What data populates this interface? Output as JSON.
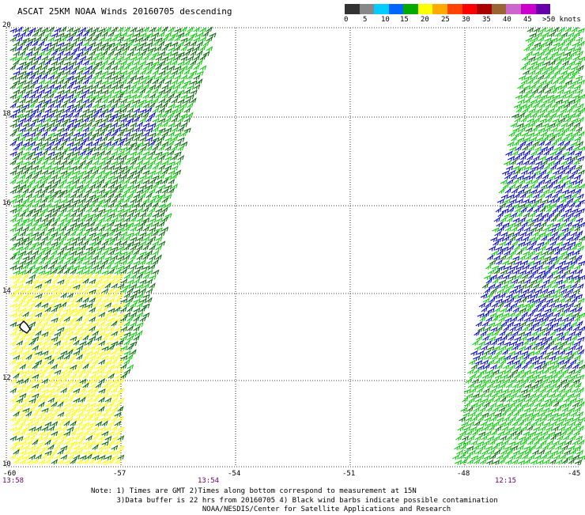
{
  "title": "ASCAT 25KM NOAA Winds 20160705 descending",
  "colors": {
    "accent_blue": "#0000cc",
    "accent_green": "#00cc00",
    "accent_dark_green": "#006600",
    "accent_yellow": "#ffff00",
    "time_label": "#660066",
    "scale": [
      "#333333",
      "#888888",
      "#00ccff",
      "#0066ff",
      "#00aa00",
      "#ffff00",
      "#ffaa00",
      "#ff4400",
      "#ff0000",
      "#aa0000",
      "#996633",
      "#cc66cc",
      "#cc00cc",
      "#6600aa"
    ]
  },
  "scale_labels": [
    "0",
    "5",
    "10",
    "15",
    "20",
    "25",
    "30",
    "35",
    "40",
    "45",
    ">50 knots"
  ],
  "lat_labels": [
    "20",
    "18",
    "16",
    "14",
    "12",
    "10"
  ],
  "lon_labels": [
    "-60",
    "-57",
    "-54",
    "-51",
    "-48",
    "-45"
  ],
  "time_labels": [
    "13:58",
    "13:54",
    "12:15"
  ],
  "notes": {
    "line1": "Note: 1) Times are GMT 2)Times along bottom correspond to measurement at 15N",
    "line2": "      3)Data buffer is 22 hrs from 20160705 4) Black wind barbs indicate possible contamination",
    "line3": "                          NOAA/NESDIS/Center for Satellite Applications and Research"
  }
}
